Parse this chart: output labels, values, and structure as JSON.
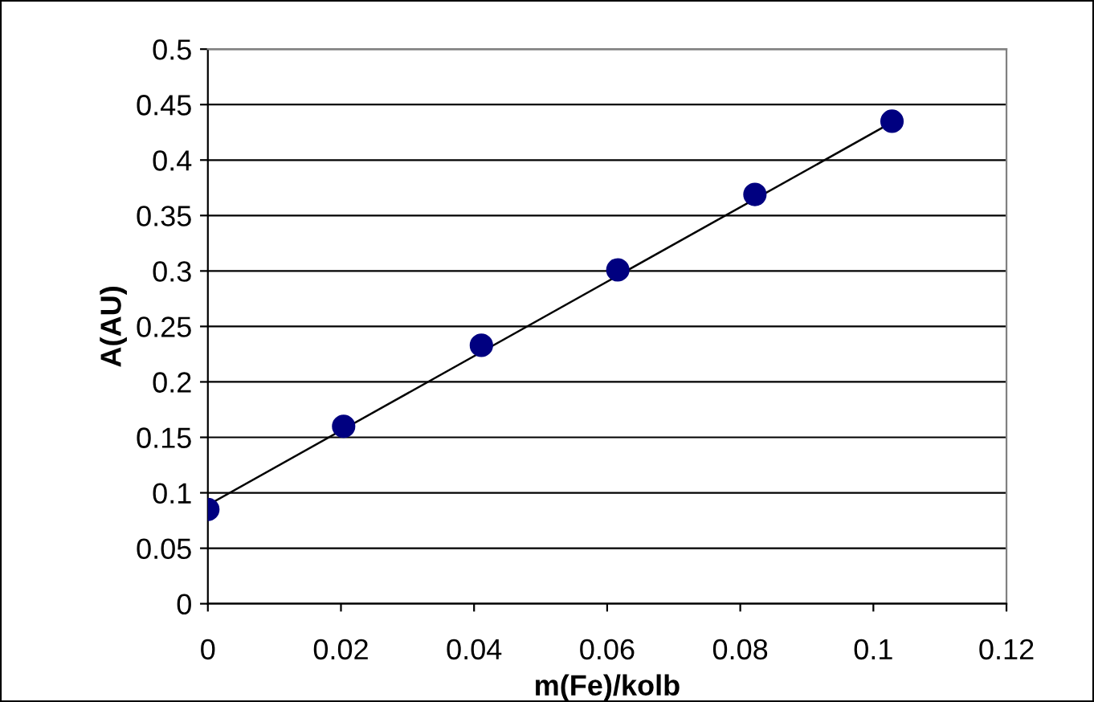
{
  "chart_data": {
    "type": "scatter",
    "xlabel": "m(Fe)/kolb",
    "ylabel": "A(AU)",
    "marker": "circle",
    "grid": "y",
    "legend": false,
    "series": [
      {
        "color": "#000080",
        "x": [
          0,
          0.0204,
          0.0411,
          0.0616,
          0.0822,
          0.1028
        ],
        "values": [
          0.085,
          0.16,
          0.233,
          0.301,
          0.369,
          0.435
        ]
      },
      {
        "type": "line",
        "color": "#000000",
        "marker": "none",
        "x": [
          0,
          0.1028
        ],
        "values": [
          0.089,
          0.434
        ]
      }
    ],
    "xlim": [
      0,
      0.12
    ],
    "xticks": [
      0,
      0.02,
      0.04,
      0.06,
      0.08,
      0.1,
      0.12
    ],
    "ylim": [
      0,
      0.5
    ],
    "yticks": [
      0,
      0.05,
      0.1,
      0.15,
      0.2,
      0.25,
      0.3,
      0.35,
      0.4,
      0.45,
      0.5
    ]
  }
}
